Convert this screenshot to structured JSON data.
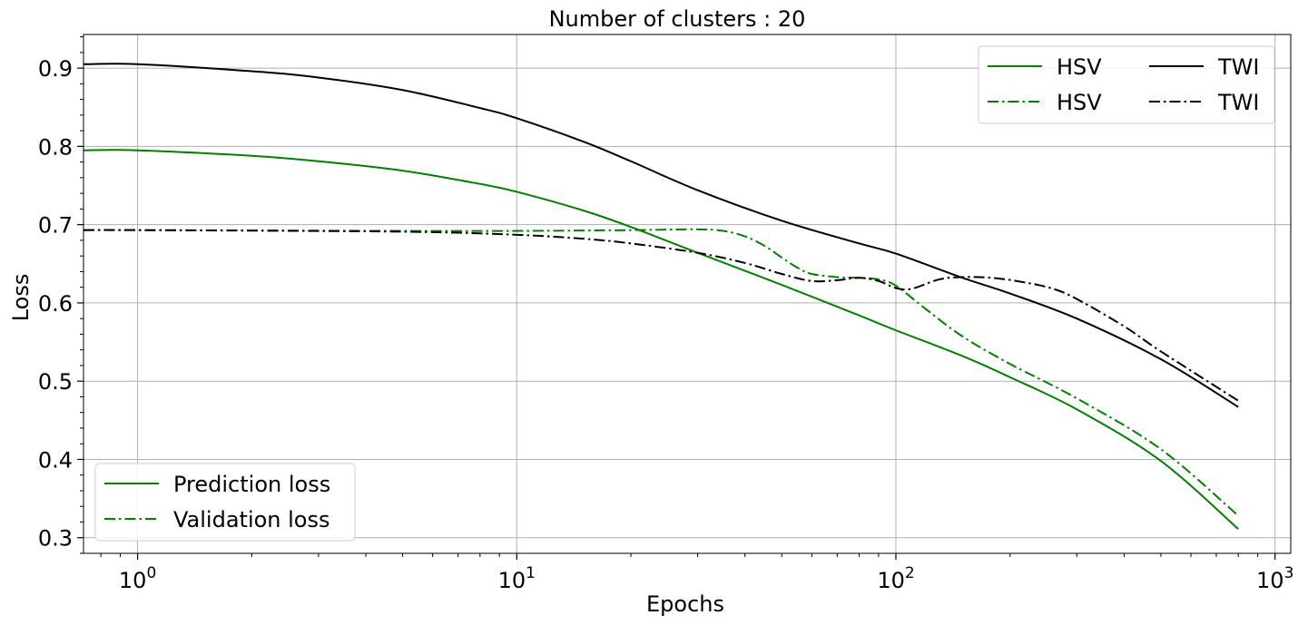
{
  "chart_data": {
    "type": "line",
    "title": "Number of clusters : 20",
    "xlabel": "Epochs",
    "ylabel": "Loss",
    "xscale": "log",
    "xlim": [
      0.72,
      1100
    ],
    "ylim": [
      0.28,
      0.943
    ],
    "grid": true,
    "x_ticks": [
      {
        "value": 1,
        "base": "10",
        "exp": "0"
      },
      {
        "value": 10,
        "base": "10",
        "exp": "1"
      },
      {
        "value": 100,
        "base": "10",
        "exp": "2"
      },
      {
        "value": 1000,
        "base": "10",
        "exp": "3"
      }
    ],
    "y_ticks": [
      "0.3",
      "0.4",
      "0.5",
      "0.6",
      "0.7",
      "0.8",
      "0.9"
    ],
    "series": [
      {
        "name": "HSV",
        "color": "#008000",
        "style": "solid",
        "x": [
          0.72,
          1,
          2,
          3,
          5,
          8,
          10,
          15,
          20,
          30,
          50,
          80,
          100,
          150,
          200,
          300,
          500,
          800
        ],
        "y": [
          0.795,
          0.795,
          0.788,
          0.781,
          0.769,
          0.752,
          0.742,
          0.718,
          0.697,
          0.664,
          0.623,
          0.584,
          0.565,
          0.532,
          0.505,
          0.464,
          0.398,
          0.311
        ]
      },
      {
        "name": "HSV",
        "color": "#008000",
        "style": "dashdot",
        "x": [
          0.72,
          1,
          5,
          10,
          20,
          30,
          35,
          40,
          45,
          50,
          55,
          60,
          70,
          80,
          90,
          100,
          120,
          150,
          200,
          300,
          500,
          800
        ],
        "y": [
          0.693,
          0.693,
          0.692,
          0.692,
          0.693,
          0.694,
          0.692,
          0.685,
          0.673,
          0.658,
          0.645,
          0.637,
          0.633,
          0.632,
          0.63,
          0.622,
          0.592,
          0.557,
          0.522,
          0.478,
          0.413,
          0.328
        ]
      },
      {
        "name": "TWI",
        "color": "#000000",
        "style": "solid",
        "x": [
          0.72,
          1,
          2,
          3,
          5,
          8,
          10,
          15,
          20,
          30,
          50,
          80,
          100,
          150,
          200,
          300,
          500,
          800
        ],
        "y": [
          0.905,
          0.905,
          0.896,
          0.888,
          0.872,
          0.849,
          0.836,
          0.806,
          0.781,
          0.744,
          0.705,
          0.676,
          0.663,
          0.632,
          0.612,
          0.58,
          0.528,
          0.467
        ]
      },
      {
        "name": "TWI",
        "color": "#000000",
        "style": "dashdot",
        "x": [
          0.72,
          1,
          5,
          10,
          15,
          20,
          30,
          40,
          50,
          60,
          70,
          80,
          90,
          100,
          110,
          130,
          150,
          180,
          220,
          260,
          300,
          400,
          500,
          800
        ],
        "y": [
          0.693,
          0.693,
          0.691,
          0.687,
          0.682,
          0.676,
          0.664,
          0.651,
          0.637,
          0.628,
          0.629,
          0.632,
          0.628,
          0.619,
          0.618,
          0.63,
          0.633,
          0.632,
          0.626,
          0.618,
          0.605,
          0.57,
          0.538,
          0.475
        ]
      }
    ],
    "legends": [
      {
        "placement": "top-right",
        "columns": 2,
        "entries": [
          {
            "label": "HSV",
            "color": "#008000",
            "style": "solid"
          },
          {
            "label": "HSV",
            "color": "#008000",
            "style": "dashdot"
          },
          {
            "label": "TWI",
            "color": "#000000",
            "style": "solid"
          },
          {
            "label": "TWI",
            "color": "#000000",
            "style": "dashdot"
          }
        ]
      },
      {
        "placement": "bottom-left",
        "columns": 1,
        "entries": [
          {
            "label": "Prediction loss",
            "color": "#008000",
            "style": "solid"
          },
          {
            "label": "Validation loss",
            "color": "#008000",
            "style": "dashdot"
          }
        ]
      }
    ]
  }
}
